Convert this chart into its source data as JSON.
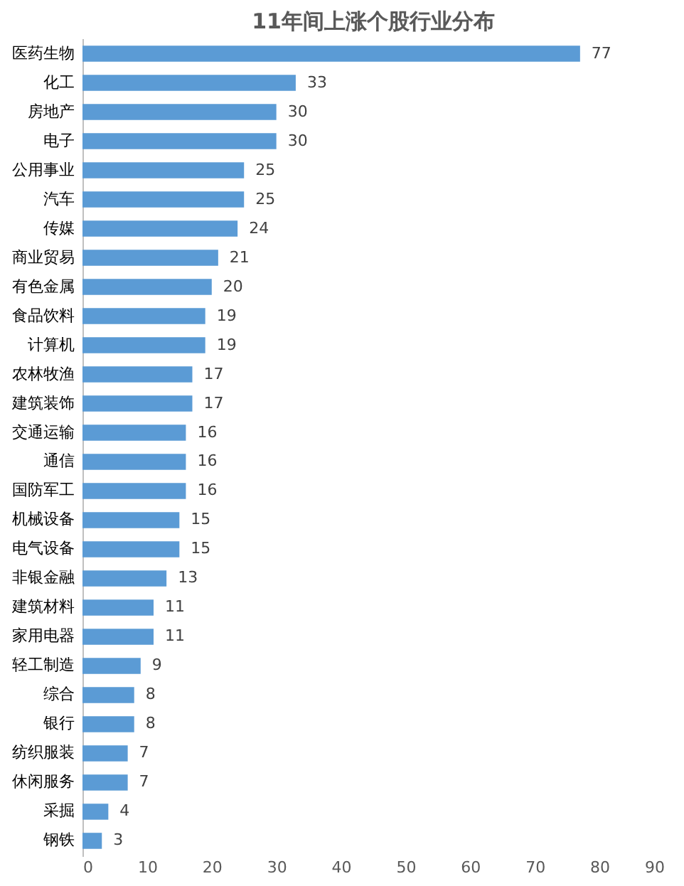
{
  "chart_data": {
    "type": "bar",
    "orientation": "horizontal",
    "title": "11年间上涨个股行业分布",
    "categories": [
      "医药生物",
      "化工",
      "房地产",
      "电子",
      "公用事业",
      "汽车",
      "传媒",
      "商业贸易",
      "有色金属",
      "食品饮料",
      "计算机",
      "农林牧渔",
      "建筑装饰",
      "交通运输",
      "通信",
      "国防军工",
      "机械设备",
      "电气设备",
      "非银金融",
      "建筑材料",
      "家用电器",
      "轻工制造",
      "综合",
      "银行",
      "纺织服装",
      "休闲服务",
      "采掘",
      "钢铁"
    ],
    "values": [
      77,
      33,
      30,
      30,
      25,
      25,
      24,
      21,
      20,
      19,
      19,
      17,
      17,
      16,
      16,
      16,
      15,
      15,
      13,
      11,
      11,
      9,
      8,
      8,
      7,
      7,
      4,
      3
    ],
    "color": "#5b9bd5",
    "xlim": [
      0,
      90
    ],
    "xticks": [
      0,
      10,
      20,
      30,
      40,
      50,
      60,
      70,
      80,
      90
    ],
    "data_labels": true,
    "grid": false
  }
}
